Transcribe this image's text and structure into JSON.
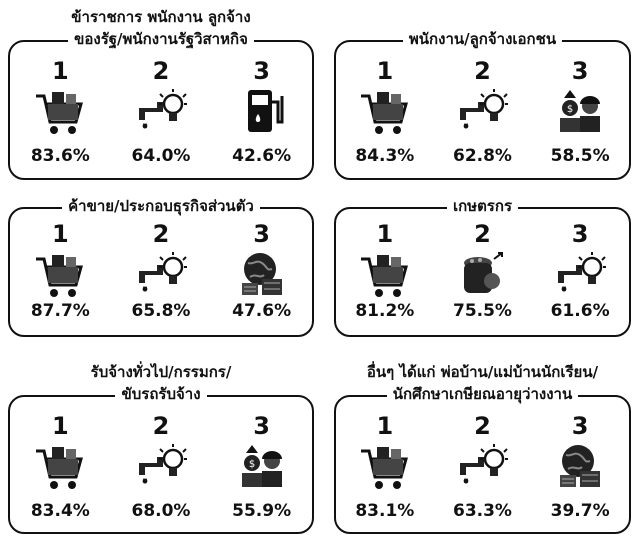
{
  "panels": [
    {
      "title": [
        "ข้าราชการ พนักงาน ลูกจ้าง",
        "ของรัฐ/พนักงานรัฐวิสาหกิจ"
      ],
      "items": [
        {
          "rank": "1",
          "value": "83.6%"
        },
        {
          "rank": "2",
          "value": "64.0%"
        },
        {
          "rank": "3",
          "value": "42.6%"
        }
      ]
    },
    {
      "title": [
        "พนักงาน/ลูกจ้างเอกชน"
      ],
      "items": [
        {
          "rank": "1",
          "value": "84.3%"
        },
        {
          "rank": "2",
          "value": "62.8%"
        },
        {
          "rank": "3",
          "value": "58.5%"
        }
      ]
    },
    {
      "title": [
        "ค้าขาย/ประกอบธุรกิจส่วนตัว"
      ],
      "items": [
        {
          "rank": "1",
          "value": "87.7%"
        },
        {
          "rank": "2",
          "value": "65.8%"
        },
        {
          "rank": "3",
          "value": "47.6%"
        }
      ]
    },
    {
      "title": [
        "เกษตรกร"
      ],
      "items": [
        {
          "rank": "1",
          "value": "81.2%"
        },
        {
          "rank": "2",
          "value": "75.5%"
        },
        {
          "rank": "3",
          "value": "61.6%"
        }
      ]
    },
    {
      "title": [
        "รับจ้างทั่วไป/กรรมกร/",
        "ขับรถรับจ้าง"
      ],
      "items": [
        {
          "rank": "1",
          "value": "83.4%"
        },
        {
          "rank": "2",
          "value": "68.0%"
        },
        {
          "rank": "3",
          "value": "55.9%"
        }
      ]
    },
    {
      "title": [
        "อื่นๆ ได้แก่ พ่อบ้าน/แม่บ้านนักเรียน/",
        "นักศึกษาเกษียณอายุว่างงาน"
      ],
      "items": [
        {
          "rank": "1",
          "value": "83.1%"
        },
        {
          "rank": "2",
          "value": "63.3%"
        },
        {
          "rank": "3",
          "value": "39.7%"
        }
      ]
    }
  ]
}
